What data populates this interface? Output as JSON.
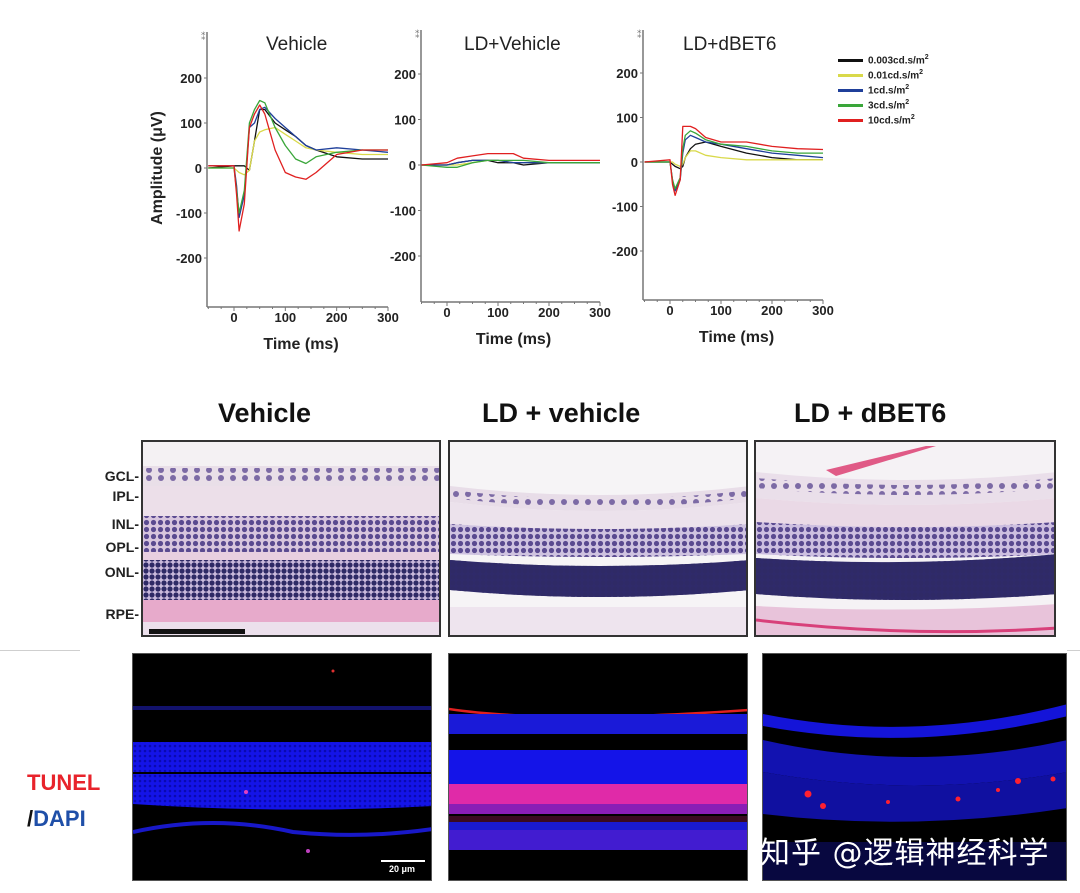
{
  "figure": {
    "erg_section": {
      "panels": [
        {
          "title": "Vehicle"
        },
        {
          "title": "LD+Vehicle"
        },
        {
          "title": "LD+dBET6"
        }
      ],
      "y_axis_title": "Amplitude (μV)",
      "x_axis_title": "Time (ms)",
      "y_ticks": [
        "200",
        "100",
        "0",
        "-100",
        "-200"
      ],
      "x_ticks": [
        "0",
        "100",
        "200",
        "300"
      ],
      "legend": [
        {
          "label": "0.003cd.s/m",
          "sup": "2",
          "color": "#111111"
        },
        {
          "label": "0.01cd.s/m",
          "sup": "2",
          "color": "#d9d94a"
        },
        {
          "label": "1cd.s/m",
          "sup": "2",
          "color": "#1f3f9a"
        },
        {
          "label": "3cd.s/m",
          "sup": "2",
          "color": "#3aa63a"
        },
        {
          "label": "10cd.s/m",
          "sup": "2",
          "color": "#e02020"
        }
      ]
    },
    "histology_section": {
      "titles": [
        "Vehicle",
        "LD + vehicle",
        "LD + dBET6"
      ],
      "layer_labels": [
        "GCL-",
        "IPL-",
        "INL-",
        "OPL-",
        "ONL-",
        "RPE-"
      ]
    },
    "fluorescence_section": {
      "stain_label_1": "TUNEL",
      "stain_label_slash": "/",
      "stain_label_2": "DAPI",
      "scale_bar": "20 μm",
      "colors": {
        "tunel": "#e8232b",
        "dapi": "#1f4fa8"
      }
    },
    "watermark": "知乎 @逻辑神经科学"
  },
  "chart_data": [
    {
      "type": "line",
      "title": "Vehicle",
      "xlabel": "Time (ms)",
      "ylabel": "Amplitude (μV)",
      "xlim": [
        -50,
        300
      ],
      "ylim": [
        -300,
        280
      ],
      "x_ticks": [
        0,
        100,
        200,
        300
      ],
      "y_ticks": [
        -200,
        -100,
        0,
        100,
        200
      ],
      "x": [
        -50,
        0,
        5,
        10,
        20,
        30,
        40,
        50,
        60,
        80,
        100,
        120,
        140,
        160,
        200,
        250,
        300
      ],
      "series": [
        {
          "name": "0.003cd.s/m2",
          "color": "#111111",
          "values": [
            0,
            5,
            5,
            5,
            5,
            -5,
            60,
            130,
            130,
            100,
            85,
            70,
            50,
            40,
            25,
            20,
            20
          ]
        },
        {
          "name": "0.01cd.s/m2",
          "color": "#d9d94a",
          "values": [
            0,
            0,
            -5,
            -10,
            -15,
            -5,
            60,
            80,
            85,
            90,
            75,
            60,
            45,
            40,
            35,
            30,
            30
          ]
        },
        {
          "name": "1cd.s/m2",
          "color": "#1f3f9a",
          "values": [
            5,
            5,
            -40,
            -110,
            -60,
            90,
            100,
            130,
            135,
            110,
            90,
            70,
            50,
            40,
            45,
            40,
            35
          ]
        },
        {
          "name": "3cd.s/m2",
          "color": "#3aa63a",
          "values": [
            0,
            0,
            -50,
            -100,
            -50,
            100,
            130,
            150,
            145,
            90,
            50,
            20,
            10,
            25,
            35,
            40,
            40
          ]
        },
        {
          "name": "10cd.s/m2",
          "color": "#e02020",
          "values": [
            5,
            5,
            -60,
            -140,
            -80,
            90,
            120,
            140,
            120,
            40,
            -10,
            -20,
            -25,
            -10,
            30,
            40,
            40
          ]
        }
      ]
    },
    {
      "type": "line",
      "title": "LD+Vehicle",
      "xlabel": "Time (ms)",
      "xlim": [
        -50,
        300
      ],
      "ylim": [
        -300,
        280
      ],
      "x_ticks": [
        0,
        100,
        200,
        300
      ],
      "y_ticks": [
        -200,
        -100,
        0,
        100,
        200
      ],
      "x": [
        -50,
        0,
        20,
        50,
        80,
        100,
        130,
        150,
        200,
        250,
        300
      ],
      "series": [
        {
          "name": "0.003cd.s/m2",
          "color": "#111111",
          "values": [
            0,
            0,
            5,
            10,
            10,
            5,
            5,
            0,
            5,
            5,
            5
          ]
        },
        {
          "name": "0.01cd.s/m2",
          "color": "#d9d94a",
          "values": [
            0,
            0,
            0,
            5,
            10,
            10,
            5,
            5,
            5,
            5,
            5
          ]
        },
        {
          "name": "1cd.s/m2",
          "color": "#1f3f9a",
          "values": [
            0,
            0,
            5,
            10,
            10,
            10,
            5,
            5,
            5,
            5,
            5
          ]
        },
        {
          "name": "3cd.s/m2",
          "color": "#3aa63a",
          "values": [
            0,
            -5,
            -5,
            5,
            10,
            10,
            10,
            10,
            5,
            5,
            5
          ]
        },
        {
          "name": "10cd.s/m2",
          "color": "#e02020",
          "values": [
            0,
            5,
            15,
            20,
            25,
            25,
            25,
            15,
            10,
            10,
            10
          ]
        }
      ]
    },
    {
      "type": "line",
      "title": "LD+dBET6",
      "xlabel": "Time (ms)",
      "xlim": [
        -50,
        300
      ],
      "ylim": [
        -300,
        280
      ],
      "x_ticks": [
        0,
        100,
        200,
        300
      ],
      "y_ticks": [
        -200,
        -100,
        0,
        100,
        200
      ],
      "x": [
        -50,
        0,
        5,
        10,
        20,
        25,
        30,
        40,
        50,
        70,
        100,
        150,
        200,
        250,
        300
      ],
      "series": [
        {
          "name": "0.003cd.s/m2",
          "color": "#111111",
          "values": [
            0,
            0,
            -5,
            -10,
            -15,
            -10,
            10,
            30,
            40,
            45,
            35,
            20,
            10,
            5,
            5
          ]
        },
        {
          "name": "0.01cd.s/m2",
          "color": "#d9d94a",
          "values": [
            0,
            0,
            0,
            -5,
            -10,
            -5,
            10,
            25,
            25,
            15,
            10,
            5,
            5,
            5,
            5
          ]
        },
        {
          "name": "1cd.s/m2",
          "color": "#1f3f9a",
          "values": [
            0,
            0,
            -40,
            -65,
            -40,
            20,
            50,
            60,
            55,
            45,
            40,
            30,
            20,
            15,
            10
          ]
        },
        {
          "name": "3cd.s/m2",
          "color": "#3aa63a",
          "values": [
            0,
            0,
            -40,
            -60,
            -35,
            30,
            60,
            70,
            65,
            50,
            40,
            35,
            25,
            20,
            20
          ]
        },
        {
          "name": "10cd.s/m2",
          "color": "#e02020",
          "values": [
            0,
            5,
            -50,
            -75,
            -40,
            80,
            80,
            80,
            75,
            55,
            45,
            45,
            35,
            30,
            28
          ]
        }
      ]
    }
  ]
}
